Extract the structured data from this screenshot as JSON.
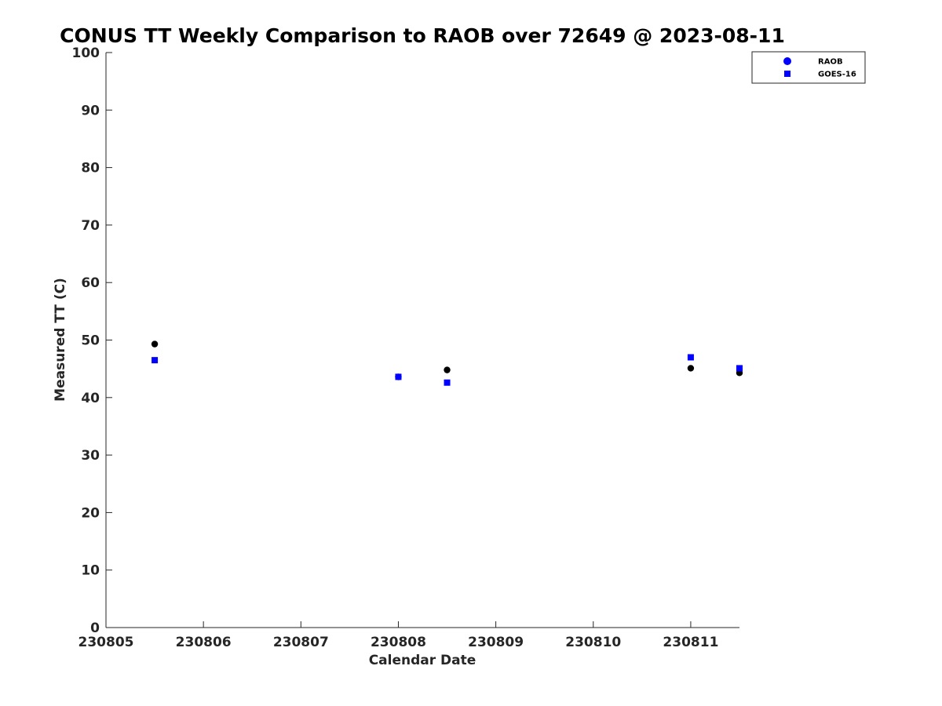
{
  "chart_data": {
    "type": "scatter",
    "title": "CONUS TT Weekly Comparison to RAOB over 72649 @ 2023-08-11",
    "xlabel": "Calendar Date",
    "ylabel": "Measured TT (C)",
    "xlim": [
      "230805",
      "230811.5"
    ],
    "ylim": [
      0,
      100
    ],
    "x_ticks": [
      "230805",
      "230806",
      "230807",
      "230808",
      "230809",
      "230810",
      "230811"
    ],
    "y_ticks": [
      "0",
      "10",
      "20",
      "30",
      "40",
      "50",
      "60",
      "70",
      "80",
      "90",
      "100"
    ],
    "grid": false,
    "legend_position": "top-right",
    "series": [
      {
        "name": "RAOB",
        "marker": "circle",
        "legend_color": "#0000ff",
        "point_color": "#000000",
        "points": [
          {
            "x": "230805.5",
            "y": 49.3
          },
          {
            "x": "230808",
            "y": 43.6
          },
          {
            "x": "230808.5",
            "y": 44.8
          },
          {
            "x": "230811",
            "y": 45.1
          },
          {
            "x": "230811.5",
            "y": 44.3
          }
        ]
      },
      {
        "name": "GOES-16",
        "marker": "square",
        "legend_color": "#0000ff",
        "point_color": "#0000ff",
        "points": [
          {
            "x": "230805.5",
            "y": 46.5
          },
          {
            "x": "230808",
            "y": 43.6
          },
          {
            "x": "230808.5",
            "y": 42.6
          },
          {
            "x": "230811",
            "y": 47.0
          },
          {
            "x": "230811.5",
            "y": 45.1
          }
        ]
      }
    ]
  }
}
